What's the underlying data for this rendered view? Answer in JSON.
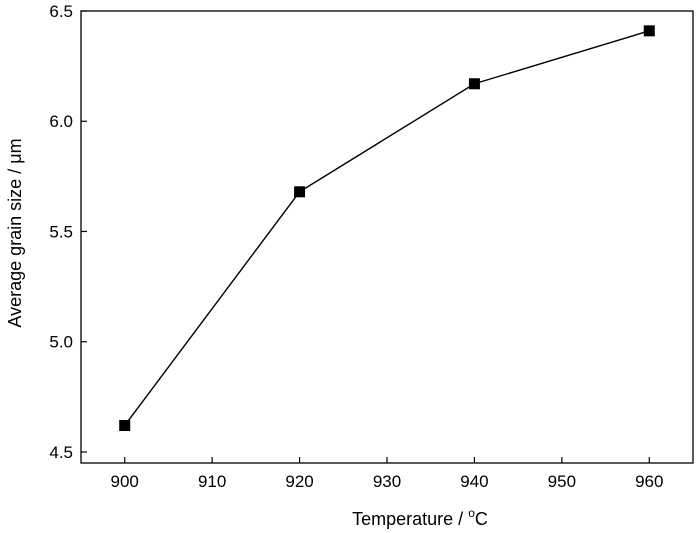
{
  "chart_data": {
    "type": "line",
    "xlabel": "Temperature / ",
    "xlabel_unit_sup": "o",
    "xlabel_unit": "C",
    "ylabel": "Average grain size / μm",
    "xlim": [
      895,
      965
    ],
    "ylim": [
      4.45,
      6.5
    ],
    "xticks": [
      900,
      910,
      920,
      930,
      940,
      950,
      960
    ],
    "yticks": [
      4.5,
      5.0,
      5.5,
      6.0,
      6.5
    ],
    "ytick_labels": [
      "4.5",
      "5.0",
      "5.5",
      "6.0",
      "6.5"
    ],
    "grid": false,
    "marker": "square",
    "color": "#000000",
    "x": [
      900,
      920,
      940,
      960
    ],
    "y": [
      4.62,
      5.68,
      6.17,
      6.41
    ]
  }
}
